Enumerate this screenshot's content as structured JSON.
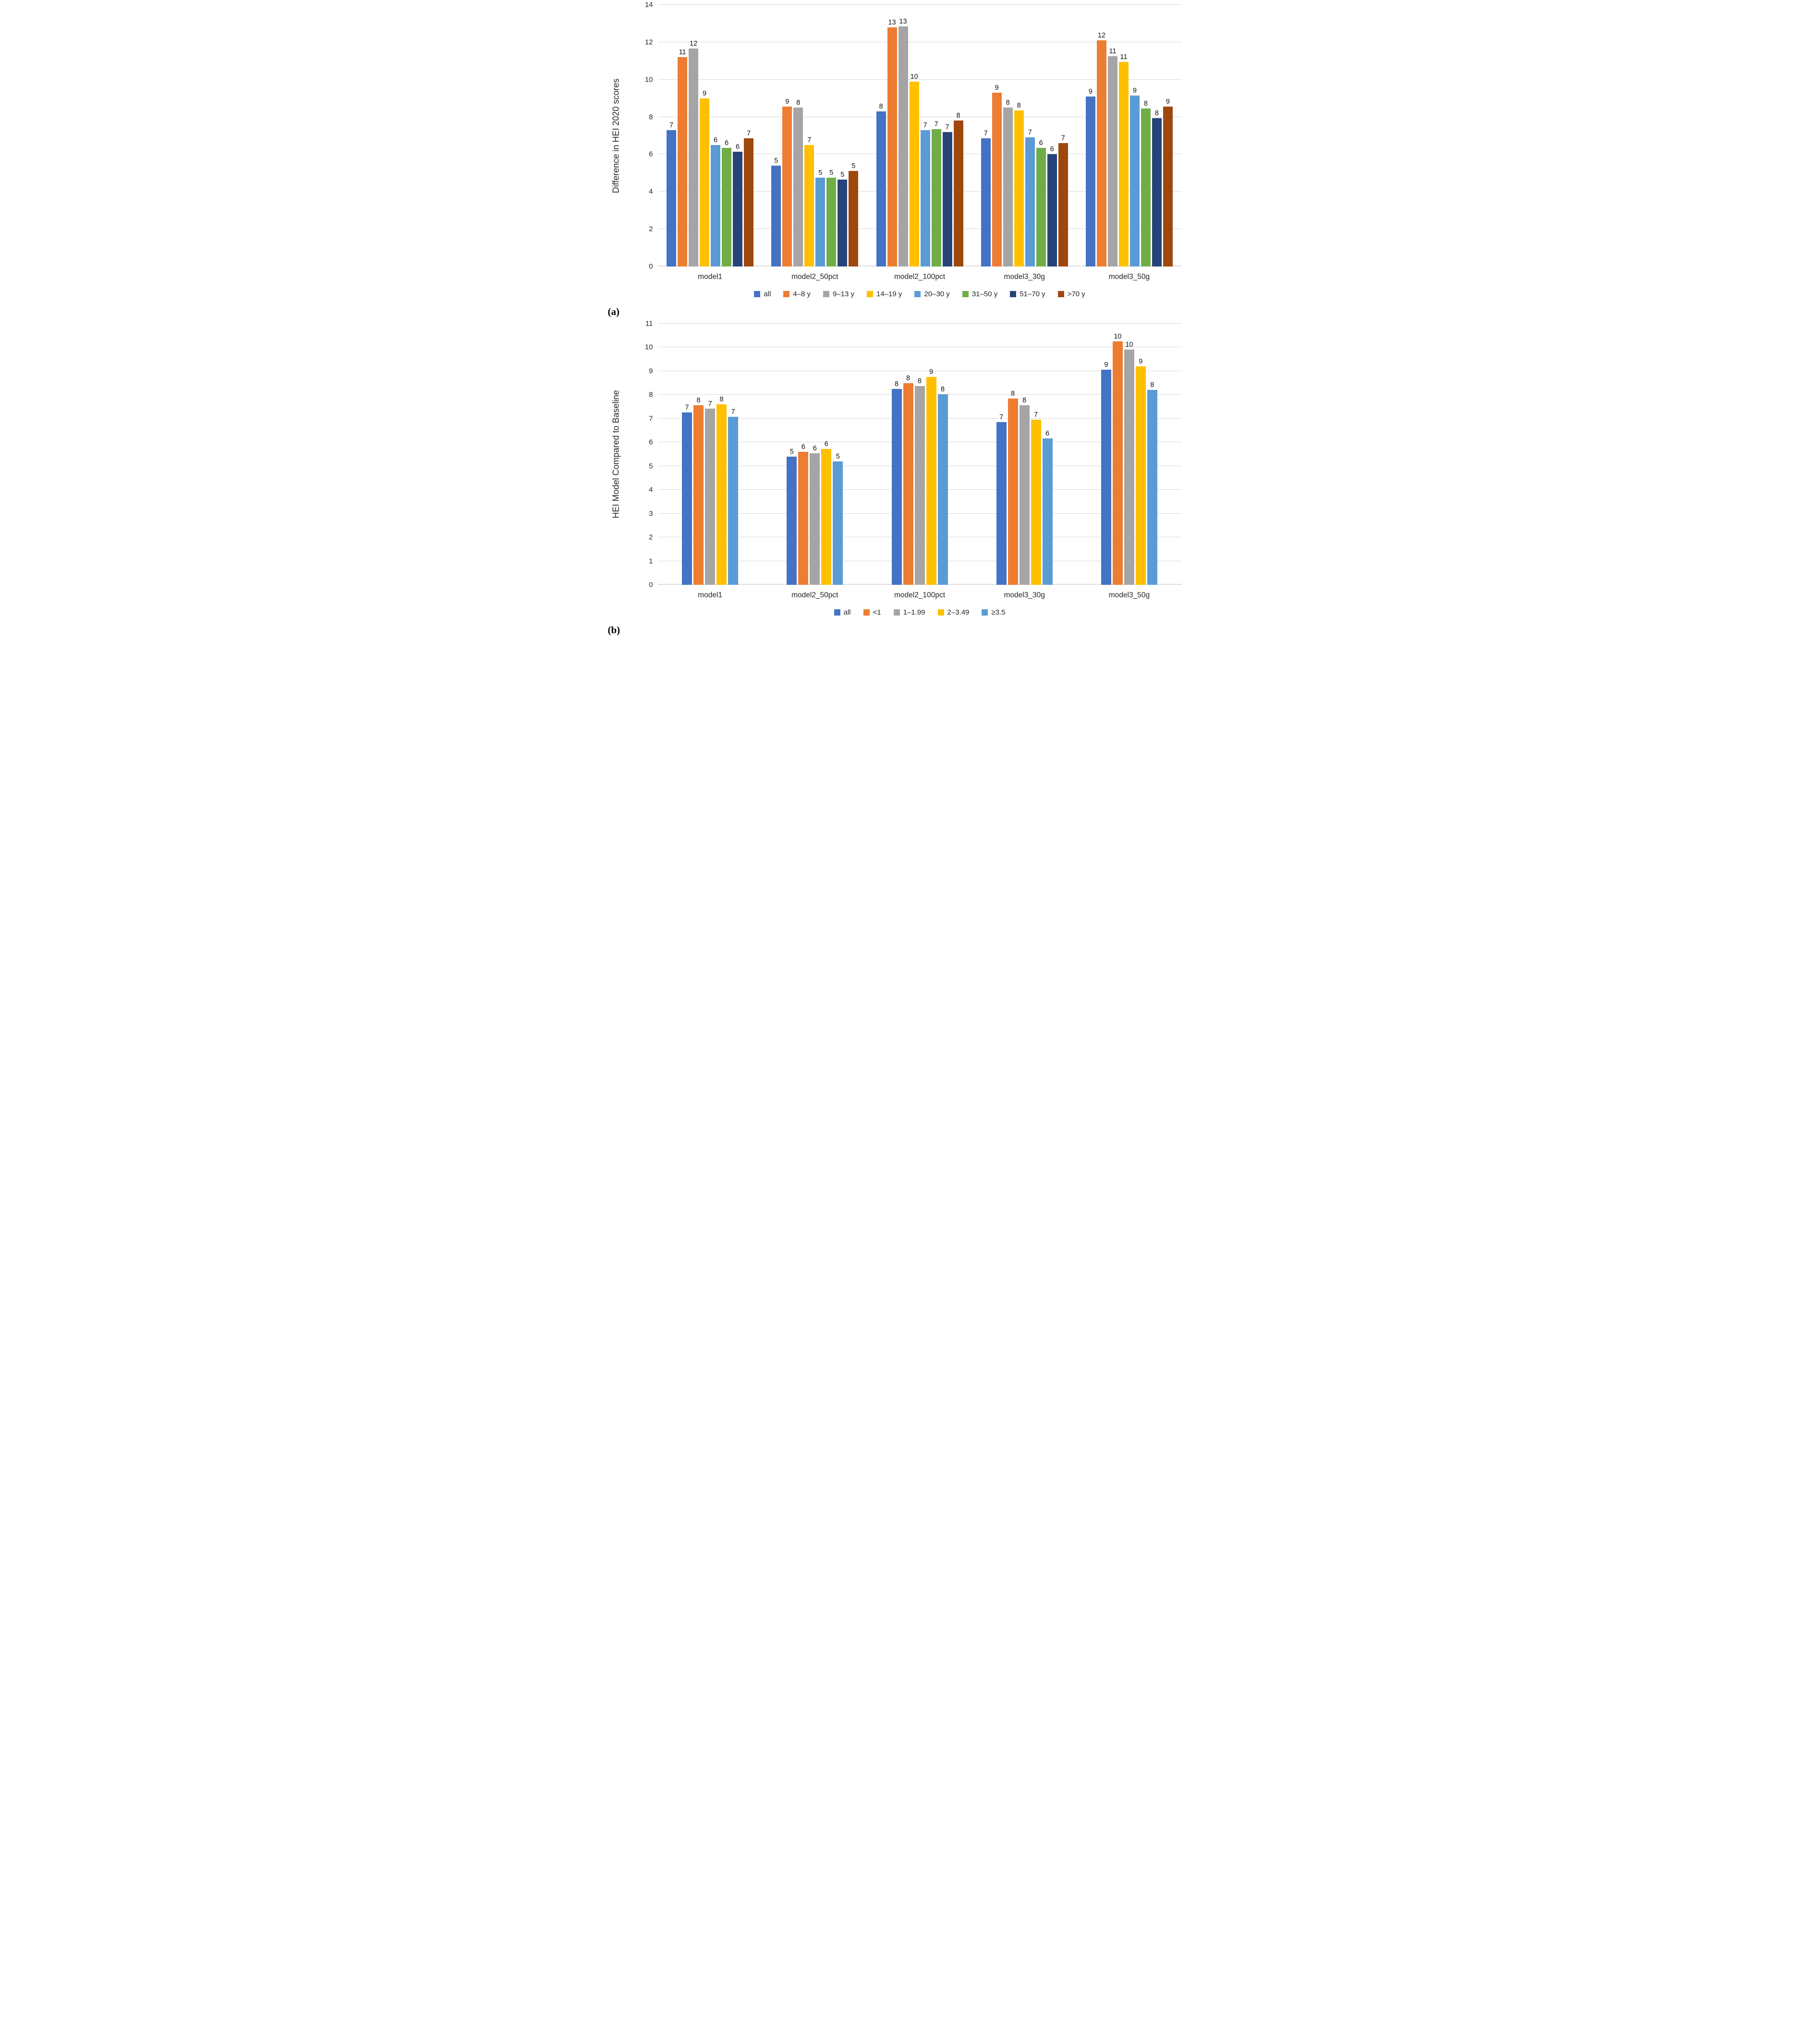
{
  "figure": {
    "panel_a": {
      "tag": "(a)"
    },
    "panel_b": {
      "tag": "(b)"
    }
  },
  "chart_data": [
    {
      "id": "a",
      "type": "bar",
      "title": "",
      "xlabel": "",
      "ylabel": "Difference in HEI 2020 scores",
      "ylim": [
        0,
        14
      ],
      "yticks": [
        0,
        2,
        4,
        6,
        8,
        10,
        12,
        14
      ],
      "grid": true,
      "legend_position": "bottom",
      "categories": [
        "model1",
        "model2_50pct",
        "model2_100pct",
        "model3_30g",
        "model3_50g"
      ],
      "series": [
        {
          "name": "all",
          "color": "#4472C4",
          "values": [
            7.3,
            5.4,
            8.3,
            6.85,
            9.1
          ],
          "labels": [
            "7",
            "5",
            "8",
            "7",
            "9"
          ]
        },
        {
          "name": "4–8 y",
          "color": "#ED7D31",
          "values": [
            11.2,
            8.55,
            12.8,
            9.3,
            12.1
          ],
          "labels": [
            "11",
            "9",
            "13",
            "9",
            "12"
          ]
        },
        {
          "name": "9–13 y",
          "color": "#A5A5A5",
          "values": [
            11.65,
            8.5,
            12.85,
            8.5,
            11.25
          ],
          "labels": [
            "12",
            "8",
            "13",
            "8",
            "11"
          ]
        },
        {
          "name": "14–19 y",
          "color": "#FFC000",
          "values": [
            9.0,
            6.5,
            9.9,
            8.35,
            10.95
          ],
          "labels": [
            "9",
            "7",
            "10",
            "8",
            "11"
          ]
        },
        {
          "name": "20–30 y",
          "color": "#5B9BD5",
          "values": [
            6.5,
            4.75,
            7.3,
            6.9,
            9.15
          ],
          "labels": [
            "6",
            "5",
            "7",
            "7",
            "9"
          ]
        },
        {
          "name": "31–50 y",
          "color": "#70AD47",
          "values": [
            6.35,
            4.75,
            7.35,
            6.35,
            8.45
          ],
          "labels": [
            "6",
            "5",
            "7",
            "6",
            "8"
          ]
        },
        {
          "name": "51–70 y",
          "color": "#264478",
          "values": [
            6.15,
            4.65,
            7.2,
            6.0,
            7.95
          ],
          "labels": [
            "6",
            "5",
            "7",
            "6",
            "8"
          ]
        },
        {
          "name": ">70 y",
          "color": "#9E480E",
          "values": [
            6.85,
            5.1,
            7.8,
            6.6,
            8.55
          ],
          "labels": [
            "7",
            "5",
            "8",
            "7",
            "9"
          ]
        }
      ]
    },
    {
      "id": "b",
      "type": "bar",
      "title": "",
      "xlabel": "",
      "ylabel": "HEI Model Compared to Baseline",
      "ylim": [
        0,
        11
      ],
      "yticks": [
        0,
        1,
        2,
        3,
        4,
        5,
        6,
        7,
        8,
        9,
        10,
        11
      ],
      "grid": true,
      "legend_position": "bottom",
      "categories": [
        "model1",
        "model2_50pct",
        "model2_100pct",
        "model3_30g",
        "model3_50g"
      ],
      "series": [
        {
          "name": "all",
          "color": "#4472C4",
          "values": [
            7.25,
            5.4,
            8.25,
            6.85,
            9.05
          ],
          "labels": [
            "7",
            "5",
            "8",
            "7",
            "9"
          ]
        },
        {
          "name": "<1",
          "color": "#ED7D31",
          "values": [
            7.57,
            5.6,
            8.5,
            7.85,
            10.25
          ],
          "labels": [
            "8",
            "6",
            "8",
            "8",
            "10"
          ]
        },
        {
          "name": "1–1.99",
          "color": "#A5A5A5",
          "values": [
            7.42,
            5.55,
            8.38,
            7.57,
            9.9
          ],
          "labels": [
            "7",
            "6",
            "8",
            "8",
            "10"
          ]
        },
        {
          "name": "2–3.49",
          "color": "#FFC000",
          "values": [
            7.6,
            5.72,
            8.75,
            6.95,
            9.2
          ],
          "labels": [
            "8",
            "6",
            "9",
            "7",
            "9"
          ]
        },
        {
          "name": "≥3.5",
          "color": "#5B9BD5",
          "values": [
            7.07,
            5.2,
            8.03,
            6.17,
            8.2
          ],
          "labels": [
            "7",
            "5",
            "8",
            "6",
            "8"
          ]
        }
      ]
    }
  ]
}
